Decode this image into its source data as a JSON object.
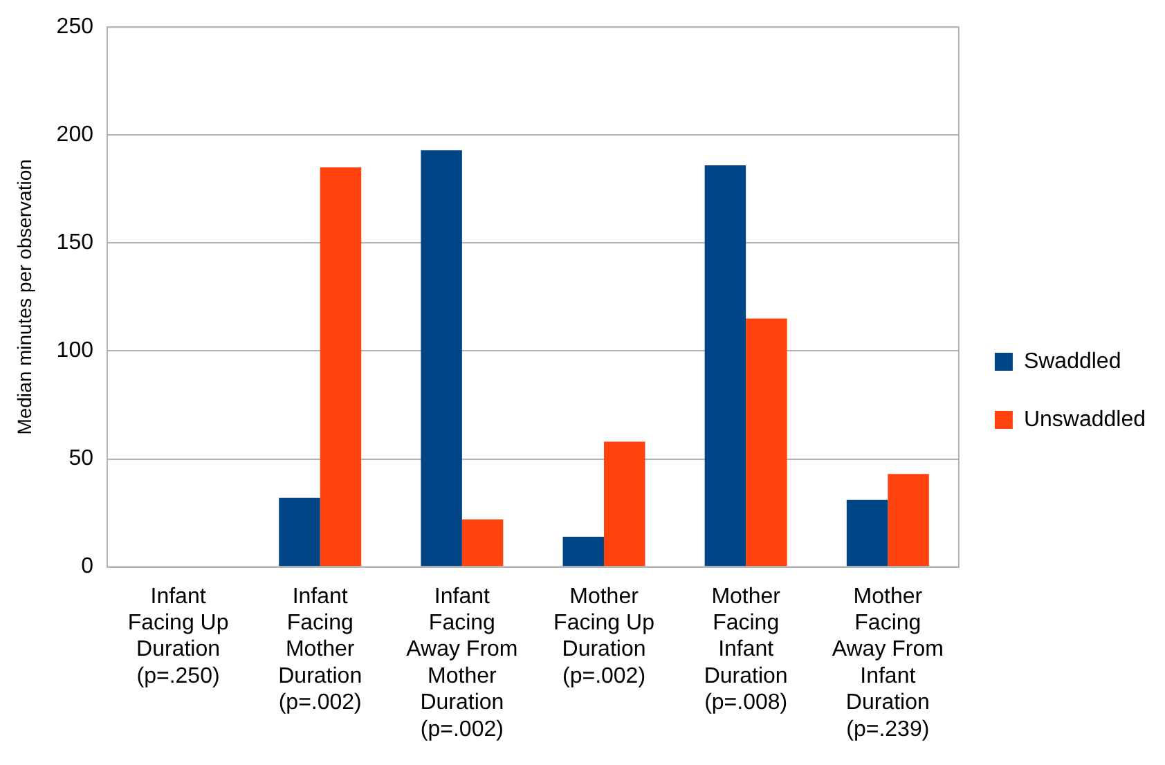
{
  "chart_data": {
    "type": "bar",
    "ylabel": "Median minutes per observation",
    "categories": [
      "Infant Facing Up Duration (p=.250)",
      "Infant Facing Mother Duration (p=.002)",
      "Infant Facing Away From Mother Duration (p=.002)",
      "Mother Facing Up Duration (p=.002)",
      "Mother Facing Infant Duration (p=.008)",
      "Mother Facing Away From Infant Duration (p=.239)"
    ],
    "series": [
      {
        "name": "Swaddled",
        "color": "#004586",
        "values": [
          0,
          32,
          193,
          14,
          186,
          31
        ]
      },
      {
        "name": "Unswaddled",
        "color": "#ff420e",
        "values": [
          0,
          185,
          22,
          58,
          115,
          43
        ]
      }
    ],
    "ylim": [
      0,
      250
    ],
    "yticks": [
      0,
      50,
      100,
      150,
      200,
      250
    ],
    "grid": "y",
    "legend": "right"
  }
}
